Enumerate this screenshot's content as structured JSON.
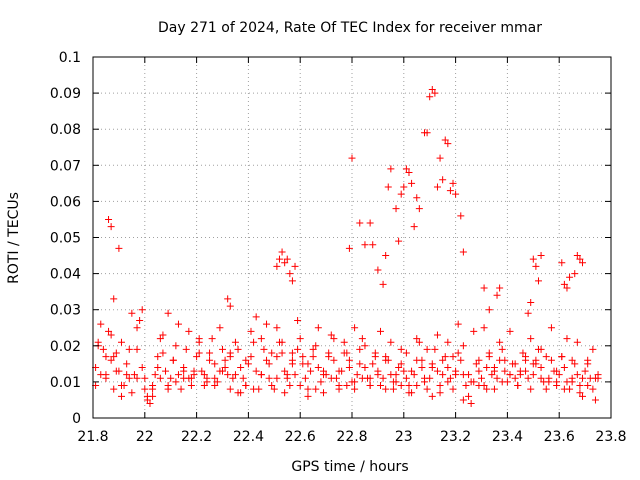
{
  "chart_data": {
    "type": "scatter",
    "title": "Day 271 of 2024, Rate Of TEC Index for receiver mmar",
    "xlabel": "GPS time / hours",
    "ylabel": "ROTI / TECUs",
    "xlim": [
      21.8,
      23.8
    ],
    "ylim": [
      0,
      0.1
    ],
    "x_ticks": [
      "21.8",
      "22",
      "22.2",
      "22.4",
      "22.6",
      "22.8",
      "23",
      "23.2",
      "23.4",
      "23.6",
      "23.8"
    ],
    "y_ticks": [
      "0",
      "0.01",
      "0.02",
      "0.03",
      "0.04",
      "0.05",
      "0.06",
      "0.07",
      "0.08",
      "0.09",
      "0.1"
    ],
    "grid": true,
    "marker": "+",
    "color": "#ff0000",
    "series": [
      {
        "name": "ROTI",
        "x": [
          21.81,
          21.82,
          21.83,
          21.84,
          21.85,
          21.86,
          21.87,
          21.88,
          21.89,
          21.9,
          21.91,
          21.92,
          21.93,
          21.94,
          21.95,
          21.96,
          21.97,
          21.98,
          21.99,
          22.0,
          22.01,
          22.02,
          22.03,
          22.04,
          22.05,
          22.06,
          22.07,
          22.08,
          22.09,
          22.1,
          22.11,
          22.12,
          22.13,
          22.14,
          22.15,
          22.16,
          22.17,
          22.18,
          22.19,
          22.2,
          22.21,
          22.22,
          22.23,
          22.24,
          22.25,
          22.26,
          22.27,
          22.28,
          22.29,
          22.3,
          22.31,
          22.32,
          22.33,
          22.34,
          22.35,
          22.36,
          22.37,
          22.38,
          22.39,
          22.4,
          22.41,
          22.42,
          22.43,
          22.44,
          22.45,
          22.46,
          22.47,
          22.48,
          22.49,
          22.5,
          22.51,
          22.52,
          22.53,
          22.54,
          22.55,
          22.56,
          22.57,
          22.58,
          22.59,
          22.6,
          22.61,
          22.62,
          22.63,
          22.64,
          22.65,
          22.66,
          22.67,
          22.68,
          22.69,
          22.7,
          22.71,
          22.72,
          22.73,
          22.74,
          22.75,
          22.76,
          22.77,
          22.78,
          22.79,
          22.8,
          22.81,
          22.82,
          22.83,
          22.84,
          22.85,
          22.86,
          22.87,
          22.88,
          22.89,
          22.9,
          22.91,
          22.92,
          22.93,
          22.94,
          22.95,
          22.96,
          22.97,
          22.98,
          22.99,
          23.0,
          23.01,
          23.02,
          23.03,
          23.04,
          23.05,
          23.06,
          23.07,
          23.08,
          23.09,
          23.1,
          23.11,
          23.12,
          23.13,
          23.14,
          23.15,
          23.16,
          23.17,
          23.18,
          23.19,
          23.2,
          23.21,
          23.22,
          23.23,
          23.24,
          23.25,
          23.26,
          23.27,
          23.28,
          23.29,
          23.3,
          23.31,
          23.32,
          23.33,
          23.34,
          23.35,
          23.36,
          23.37,
          23.38,
          23.39,
          23.4,
          23.41,
          23.42,
          23.43,
          23.44,
          23.45,
          23.46,
          23.47,
          23.48,
          23.49,
          23.5,
          23.51,
          23.52,
          23.53,
          23.54,
          23.55,
          23.56,
          23.57,
          23.58,
          23.59,
          23.6,
          23.61,
          23.62,
          23.63,
          23.64,
          23.65,
          23.66,
          23.67,
          23.68,
          23.69,
          23.7,
          23.71,
          23.72,
          23.73,
          23.74,
          23.75,
          21.81,
          21.83,
          21.85,
          21.87,
          21.89,
          21.91,
          21.93,
          21.95,
          21.97,
          21.99,
          22.01,
          22.03,
          22.05,
          22.07,
          22.09,
          22.11,
          22.13,
          22.15,
          22.17,
          22.19,
          22.21,
          22.23,
          22.25,
          22.27,
          22.29,
          22.31,
          22.33,
          22.35,
          22.37,
          22.39,
          22.41,
          22.43,
          22.45,
          22.47,
          22.49,
          22.51,
          22.53,
          22.55,
          22.57,
          22.59,
          22.61,
          22.63,
          22.65,
          22.67,
          22.69,
          22.71,
          22.73,
          22.75,
          22.77,
          22.79,
          22.81,
          22.83,
          22.85,
          22.87,
          22.89,
          22.91,
          22.93,
          22.95,
          22.97,
          22.99,
          23.01,
          23.03,
          23.05,
          23.07,
          23.09,
          23.11,
          23.13,
          23.15,
          23.17,
          23.19,
          23.21,
          23.23,
          23.25,
          23.27,
          23.29,
          23.31,
          23.33,
          23.35,
          23.37,
          23.39,
          23.41,
          23.43,
          23.45,
          23.47,
          23.49,
          23.51,
          23.53,
          23.55,
          23.57,
          23.59,
          23.61,
          23.63,
          23.65,
          23.67,
          23.69,
          23.71,
          23.73,
          23.75,
          21.82,
          21.85,
          21.88,
          21.91,
          21.94,
          21.97,
          22.0,
          22.03,
          22.06,
          22.09,
          22.12,
          22.15,
          22.18,
          22.21,
          22.24,
          22.27,
          22.3,
          22.33,
          22.36,
          22.39,
          22.42,
          22.45,
          22.48,
          22.51,
          22.54,
          22.57,
          22.6,
          22.63,
          22.66,
          22.69,
          22.72,
          22.75,
          22.78,
          22.81,
          22.84,
          22.87,
          22.9,
          22.93,
          22.96,
          22.99,
          23.02,
          23.05,
          23.08,
          23.11,
          23.14,
          23.17,
          23.2,
          23.23,
          23.26,
          23.29,
          23.32,
          23.35,
          23.38,
          23.41,
          23.44,
          23.47,
          23.5,
          23.53,
          23.56,
          23.59,
          23.62,
          23.65,
          23.68,
          23.71,
          23.74,
          21.86,
          21.87,
          21.88,
          21.9,
          22.32,
          22.33,
          22.51,
          22.52,
          22.53,
          22.54,
          22.55,
          22.56,
          22.57,
          22.58,
          22.79,
          22.8,
          22.83,
          22.85,
          22.87,
          22.88,
          22.9,
          22.92,
          22.93,
          22.94,
          22.95,
          22.97,
          22.98,
          22.99,
          23.0,
          23.01,
          23.02,
          23.03,
          23.04,
          23.05,
          23.06,
          23.08,
          23.09,
          23.1,
          23.11,
          23.12,
          23.13,
          23.14,
          23.15,
          23.16,
          23.17,
          23.18,
          23.19,
          23.2,
          23.22,
          23.23,
          23.31,
          23.33,
          23.36,
          23.37,
          23.48,
          23.49,
          23.5,
          23.51,
          23.52,
          23.53,
          23.61,
          23.62,
          23.63,
          23.64,
          23.66,
          23.67,
          23.68,
          23.69
        ],
        "y": [
          0.009,
          0.021,
          0.012,
          0.019,
          0.011,
          0.024,
          0.016,
          0.008,
          0.018,
          0.013,
          0.021,
          0.009,
          0.015,
          0.011,
          0.007,
          0.012,
          0.019,
          0.027,
          0.03,
          0.011,
          0.005,
          0.004,
          0.008,
          0.012,
          0.017,
          0.022,
          0.018,
          0.013,
          0.009,
          0.011,
          0.016,
          0.02,
          0.012,
          0.008,
          0.014,
          0.019,
          0.011,
          0.009,
          0.012,
          0.017,
          0.021,
          0.013,
          0.009,
          0.011,
          0.018,
          0.022,
          0.015,
          0.01,
          0.013,
          0.019,
          0.016,
          0.012,
          0.008,
          0.011,
          0.021,
          0.019,
          0.014,
          0.011,
          0.009,
          0.015,
          0.017,
          0.021,
          0.013,
          0.008,
          0.012,
          0.019,
          0.016,
          0.011,
          0.009,
          0.008,
          0.017,
          0.021,
          0.018,
          0.013,
          0.011,
          0.009,
          0.016,
          0.012,
          0.019,
          0.022,
          0.015,
          0.011,
          0.008,
          0.013,
          0.017,
          0.02,
          0.014,
          0.01,
          0.007,
          0.012,
          0.018,
          0.023,
          0.016,
          0.011,
          0.009,
          0.013,
          0.021,
          0.018,
          0.014,
          0.01,
          0.008,
          0.012,
          0.019,
          0.022,
          0.014,
          0.011,
          0.009,
          0.015,
          0.018,
          0.013,
          0.009,
          0.011,
          0.017,
          0.016,
          0.012,
          0.008,
          0.01,
          0.014,
          0.019,
          0.013,
          0.011,
          0.009,
          0.007,
          0.012,
          0.016,
          0.021,
          0.014,
          0.01,
          0.008,
          0.011,
          0.015,
          0.019,
          0.013,
          0.009,
          0.012,
          0.017,
          0.014,
          0.011,
          0.008,
          0.013,
          0.018,
          0.016,
          0.012,
          0.009,
          0.006,
          0.004,
          0.01,
          0.015,
          0.013,
          0.011,
          0.009,
          0.014,
          0.017,
          0.012,
          0.008,
          0.011,
          0.016,
          0.019,
          0.013,
          0.01,
          0.012,
          0.015,
          0.011,
          0.009,
          0.013,
          0.018,
          0.016,
          0.011,
          0.008,
          0.012,
          0.015,
          0.019,
          0.014,
          0.01,
          0.008,
          0.011,
          0.016,
          0.013,
          0.009,
          0.012,
          0.017,
          0.014,
          0.01,
          0.008,
          0.011,
          0.015,
          0.012,
          0.009,
          0.006,
          0.013,
          0.016,
          0.011,
          0.008,
          0.005,
          0.012,
          0.014,
          0.026,
          0.017,
          0.023,
          0.013,
          0.006,
          0.012,
          0.029,
          0.025,
          0.014,
          0.006,
          0.009,
          0.014,
          0.023,
          0.029,
          0.016,
          0.026,
          0.011,
          0.024,
          0.013,
          0.022,
          0.012,
          0.016,
          0.011,
          0.025,
          0.014,
          0.018,
          0.012,
          0.007,
          0.016,
          0.024,
          0.028,
          0.022,
          0.026,
          0.018,
          0.025,
          0.021,
          0.012,
          0.018,
          0.027,
          0.017,
          0.015,
          0.019,
          0.025,
          0.013,
          0.017,
          0.022,
          0.013,
          0.018,
          0.016,
          0.025,
          0.015,
          0.02,
          0.011,
          0.017,
          0.024,
          0.016,
          0.021,
          0.012,
          0.015,
          0.018,
          0.013,
          0.022,
          0.016,
          0.019,
          0.014,
          0.023,
          0.016,
          0.021,
          0.017,
          0.026,
          0.02,
          0.012,
          0.024,
          0.016,
          0.025,
          0.018,
          0.014,
          0.021,
          0.016,
          0.024,
          0.015,
          0.012,
          0.017,
          0.022,
          0.016,
          0.019,
          0.017,
          0.025,
          0.013,
          0.017,
          0.022,
          0.016,
          0.021,
          0.011,
          0.015,
          0.019,
          0.011,
          0.02,
          0.012,
          0.017,
          0.009,
          0.019,
          0.011,
          0.008,
          0.006,
          0.011,
          0.008,
          0.01,
          0.013,
          0.011,
          0.018,
          0.01,
          0.009,
          0.013,
          0.017,
          0.007,
          0.009,
          0.008,
          0.012,
          0.015,
          0.011,
          0.007,
          0.015,
          0.009,
          0.006,
          0.008,
          0.012,
          0.011,
          0.008,
          0.009,
          0.01,
          0.011,
          0.009,
          0.012,
          0.008,
          0.01,
          0.009,
          0.007,
          0.009,
          0.011,
          0.006,
          0.007,
          0.01,
          0.012,
          0.005,
          0.01,
          0.009,
          0.008,
          0.013,
          0.01,
          0.012,
          0.009,
          0.013,
          0.015,
          0.011,
          0.01,
          0.01,
          0.008,
          0.01,
          0.007,
          0.009,
          0.011,
          0.055,
          0.053,
          0.033,
          0.047,
          0.033,
          0.031,
          0.042,
          0.044,
          0.046,
          0.043,
          0.044,
          0.04,
          0.038,
          0.042,
          0.047,
          0.072,
          0.054,
          0.048,
          0.054,
          0.048,
          0.041,
          0.037,
          0.045,
          0.064,
          0.069,
          0.058,
          0.049,
          0.062,
          0.064,
          0.069,
          0.068,
          0.065,
          0.053,
          0.061,
          0.058,
          0.079,
          0.079,
          0.089,
          0.091,
          0.09,
          0.064,
          0.072,
          0.066,
          0.077,
          0.076,
          0.063,
          0.065,
          0.062,
          0.056,
          0.046,
          0.036,
          0.03,
          0.034,
          0.036,
          0.029,
          0.032,
          0.044,
          0.042,
          0.038,
          0.045,
          0.043,
          0.037,
          0.036,
          0.039,
          0.04,
          0.045,
          0.044,
          0.043
        ]
      }
    ]
  }
}
